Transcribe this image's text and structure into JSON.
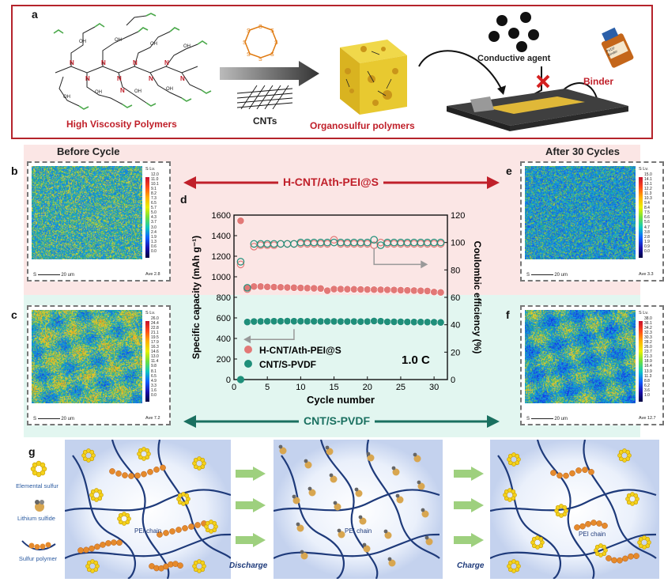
{
  "panel_a": {
    "letter": "a",
    "high_viscosity_label": "High Viscosity Polymers",
    "cnts_label": "CNTs",
    "organosulfur_label": "Organosulfur polymers",
    "conductive_agent_label": "Conductive agent",
    "binder_label": "Binder",
    "binder_bottle_text": "PVDF Binder",
    "colors": {
      "frame": "#b5232b",
      "accent_red": "#c0202a"
    }
  },
  "header": {
    "before_cycle": "Before Cycle",
    "after_cycles": "After 30 Cycles",
    "top_arrow_label": "H-CNT/Ath-PEI@S",
    "bottom_arrow_label": "CNT/S-PVDF"
  },
  "maps": {
    "b": {
      "letter": "b",
      "unit": "S Lv.",
      "scale": "20 um",
      "ave": "Ave 2.8",
      "ticks": [
        "12.0",
        "11.0",
        "10.1",
        "9.1",
        "8.2",
        "7.3",
        "6.5",
        "5.7",
        "5.0",
        "4.3",
        "3.7",
        "3.0",
        "2.4",
        "1.9",
        "1.3",
        "0.6",
        "0.0"
      ]
    },
    "c": {
      "letter": "c",
      "unit": "S Lv.",
      "scale": "20 um",
      "ave": "Ave 7.2",
      "ticks": [
        "26.0",
        "24.4",
        "22.8",
        "21.1",
        "19.5",
        "17.9",
        "16.3",
        "14.6",
        "13.0",
        "11.4",
        "9.8",
        "8.1",
        "6.5",
        "4.9",
        "3.3",
        "1.6",
        "0.0"
      ]
    },
    "e": {
      "letter": "e",
      "unit": "S Lv.",
      "scale": "20 um",
      "ave": "Ave 3.3",
      "ticks": [
        "15.0",
        "14.1",
        "13.1",
        "12.2",
        "11.3",
        "10.3",
        "9.4",
        "8.4",
        "7.5",
        "6.6",
        "5.6",
        "4.7",
        "3.8",
        "2.8",
        "1.9",
        "0.9",
        "0.0"
      ]
    },
    "f": {
      "letter": "f",
      "unit": "S Lv.",
      "scale": "20 um",
      "ave": "Ave 12.7",
      "ticks": [
        "38.0",
        "36.1",
        "34.2",
        "32.3",
        "30.3",
        "28.2",
        "26.0",
        "23.7",
        "21.3",
        "18.9",
        "16.4",
        "13.9",
        "11.3",
        "8.8",
        "6.2",
        "3.6",
        "1.0"
      ]
    }
  },
  "chart_data": {
    "letter": "d",
    "type": "scatter",
    "xlabel": "Cycle number",
    "ylabel_left": "Specific capacity (mAh g⁻¹)",
    "ylabel_right": "Coulombic efficiency (%)",
    "xlim": [
      0,
      32
    ],
    "ylim_left": [
      0,
      1600
    ],
    "ylim_right": [
      0,
      120
    ],
    "xticks": [
      0,
      5,
      10,
      15,
      20,
      25,
      30
    ],
    "yticks_left": [
      0,
      200,
      400,
      600,
      800,
      1000,
      1200,
      1400,
      1600
    ],
    "yticks_right": [
      0,
      20,
      40,
      60,
      80,
      100,
      120
    ],
    "annotation": "1.0 C",
    "legend_position": "bottom-left",
    "series": [
      {
        "name": "H-CNT/Ath-PEI@S",
        "color": "#e27876",
        "capacity": [
          1545,
          895,
          905,
          905,
          902,
          900,
          898,
          896,
          894,
          892,
          890,
          888,
          886,
          865,
          880,
          880,
          879,
          878,
          877,
          876,
          875,
          874,
          873,
          872,
          870,
          868,
          866,
          864,
          862,
          852,
          848
        ],
        "efficiency": [
          84,
          66,
          97,
          98,
          98,
          98,
          99,
          99,
          99,
          99,
          99,
          99,
          99,
          99,
          102,
          99,
          99,
          99,
          99,
          99,
          98,
          100,
          99,
          99,
          99,
          99,
          99,
          99,
          99,
          99,
          99
        ]
      },
      {
        "name": "CNT/S-PVDF",
        "color": "#1f8f7a",
        "capacity": [
          0,
          560,
          565,
          566,
          567,
          568,
          568,
          569,
          568,
          568,
          567,
          567,
          566,
          566,
          566,
          565,
          565,
          565,
          564,
          565,
          570,
          568,
          562,
          562,
          562,
          561,
          560,
          560,
          559,
          558,
          556
        ],
        "efficiency": [
          86,
          67,
          99,
          99,
          99,
          99,
          99,
          99,
          99,
          100,
          100,
          100,
          100,
          100,
          100,
          100,
          100,
          100,
          100,
          100,
          102,
          98,
          100,
          100,
          100,
          100,
          100,
          100,
          100,
          100,
          100
        ]
      }
    ]
  },
  "panel_g": {
    "letter": "g",
    "legend_elemental": "Elemental sulfur",
    "legend_lithium": "Lithium sulfide",
    "legend_polymer": "Sulfur polymer",
    "chain_label": "PEI chain",
    "discharge_label": "Discharge",
    "charge_label": "Charge"
  }
}
